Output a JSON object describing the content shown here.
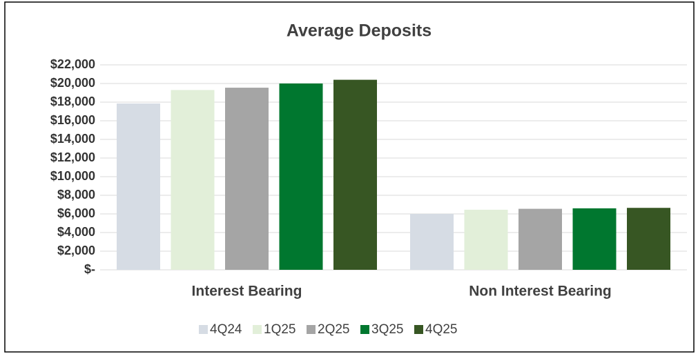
{
  "chart_data": {
    "type": "bar",
    "title": "Average Deposits",
    "categories": [
      "Interest Bearing",
      "Non Interest Bearing"
    ],
    "series": [
      {
        "name": "4Q24",
        "color": "#d6dce4",
        "values": [
          17850,
          6000
        ]
      },
      {
        "name": "1Q25",
        "color": "#e2efd9",
        "values": [
          19300,
          6450
        ]
      },
      {
        "name": "2Q25",
        "color": "#a5a5a5",
        "values": [
          19550,
          6550
        ]
      },
      {
        "name": "3Q25",
        "color": "#00772f",
        "values": [
          20000,
          6600
        ]
      },
      {
        "name": "4Q25",
        "color": "#375623",
        "values": [
          20400,
          6650
        ]
      }
    ],
    "ylim": [
      0,
      22000
    ],
    "yticks": [
      {
        "value": 0,
        "label": "$-"
      },
      {
        "value": 2000,
        "label": "$2,000"
      },
      {
        "value": 4000,
        "label": "$4,000"
      },
      {
        "value": 6000,
        "label": "$6,000"
      },
      {
        "value": 8000,
        "label": "$8,000"
      },
      {
        "value": 10000,
        "label": "$10,000"
      },
      {
        "value": 12000,
        "label": "$12,000"
      },
      {
        "value": 14000,
        "label": "$14,000"
      },
      {
        "value": 16000,
        "label": "$16,000"
      },
      {
        "value": 18000,
        "label": "$18,000"
      },
      {
        "value": 20000,
        "label": "$20,000"
      },
      {
        "value": 22000,
        "label": "$22,000"
      }
    ],
    "grid": true,
    "legend": "bottom"
  }
}
